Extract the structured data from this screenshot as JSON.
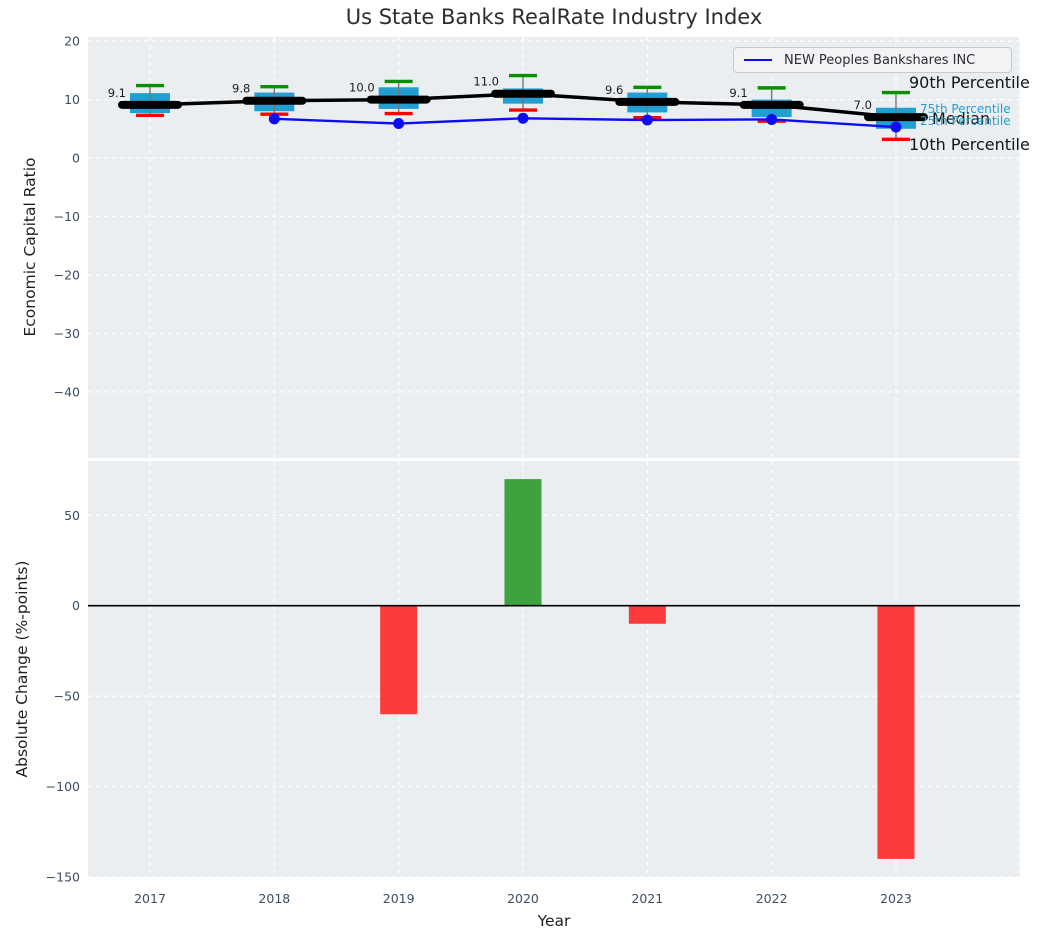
{
  "title": "Us State Banks RealRate Industry Index",
  "legend": {
    "company_label": "NEW Peoples Bankshares INC"
  },
  "annotations": {
    "p90": "90th Percentile",
    "p75": "75th Percentile",
    "median": "Median",
    "p25": "25th Percentile",
    "p10": "10th Percentile"
  },
  "colors": {
    "panel_bg": "#eaeef1",
    "grid": "#ffffff",
    "box_fill": "#229fd2",
    "whisker": "#787878",
    "cap_high": "#089000",
    "cap_low": "#ff0000",
    "median_line": "#000000",
    "company_line": "#0d0df0",
    "bar_positive": "#3ea23e",
    "bar_negative": "#fb3b3b",
    "tick_label": "#3c4e63",
    "value_label": "#1c1c1c",
    "zero_line": "#000000",
    "percentile_text": "#259fd2"
  },
  "chart_data": [
    {
      "type": "boxplot-line",
      "title": "Us State Banks RealRate Industry Index",
      "ylabel": "Economic Capital Ratio",
      "ylim": [
        -51.3,
        20.7
      ],
      "yticks": [
        20,
        10,
        0,
        -10,
        -20,
        -30,
        -40
      ],
      "grid": true,
      "legend_position": "upper right",
      "categories": [
        2017,
        2018,
        2019,
        2020,
        2021,
        2022,
        2023
      ],
      "median_labels": [
        "9.1",
        "9.8",
        "10.0",
        "11.0",
        "9.6",
        "9.1",
        "7.0"
      ],
      "series": [
        {
          "name": "Median",
          "values": [
            9.1,
            9.8,
            10.0,
            11.0,
            9.6,
            9.1,
            7.0
          ]
        },
        {
          "name": "90th Percentile",
          "values": [
            12.4,
            12.2,
            13.1,
            14.1,
            12.1,
            12.0,
            11.2
          ]
        },
        {
          "name": "75th Percentile",
          "values": [
            11.1,
            11.2,
            12.1,
            11.9,
            11.2,
            10.0,
            8.6
          ]
        },
        {
          "name": "25th Percentile",
          "values": [
            7.7,
            8.0,
            8.4,
            9.3,
            7.8,
            7.0,
            5.0
          ]
        },
        {
          "name": "10th Percentile",
          "values": [
            7.3,
            7.5,
            7.6,
            8.2,
            6.9,
            6.3,
            3.2
          ]
        },
        {
          "name": "NEW Peoples Bankshares INC",
          "values": [
            null,
            6.7,
            5.9,
            6.8,
            6.5,
            6.6,
            5.3
          ]
        }
      ]
    },
    {
      "type": "bar",
      "xlabel": "Year",
      "ylabel": "Absolute Change (%-points)",
      "ylim": [
        -150,
        80
      ],
      "yticks": [
        50,
        0,
        -50,
        -100,
        -150
      ],
      "grid": true,
      "categories": [
        2017,
        2018,
        2019,
        2020,
        2021,
        2022,
        2023
      ],
      "values": [
        null,
        null,
        -60,
        70,
        -10,
        null,
        -140
      ]
    }
  ]
}
